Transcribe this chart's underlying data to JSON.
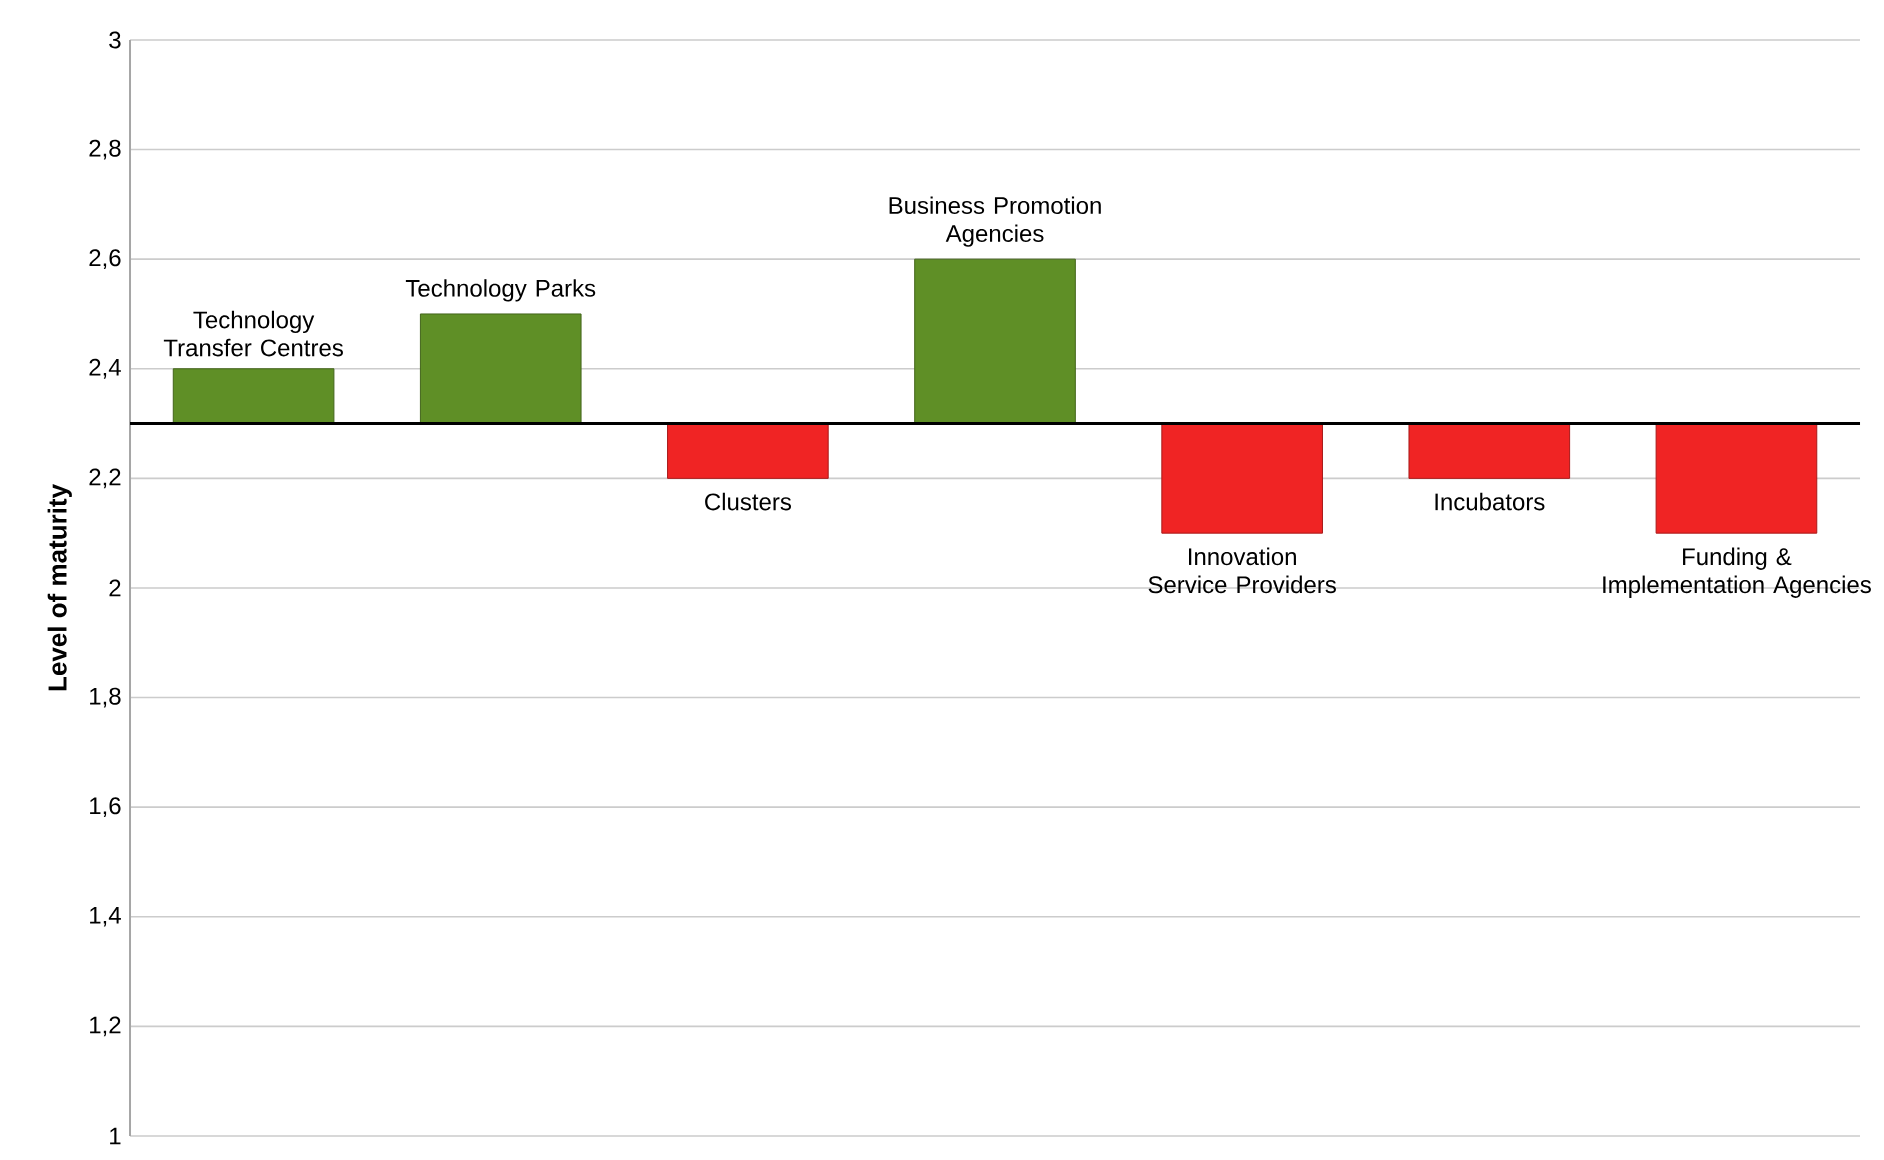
{
  "chart_data": {
    "type": "bar",
    "ylabel": "Level of maturity",
    "categories": [
      "Technology Transfer Centres",
      "Technology Parks",
      "Clusters",
      "Business Promotion Agencies",
      "Innovation Service Providers",
      "Incubators",
      "Funding & Implementation Agencies"
    ],
    "values": [
      0.1,
      0.2,
      -0.1,
      0.3,
      -0.2,
      -0.1,
      -0.2
    ],
    "base": [
      2.3,
      2.3,
      2.3,
      2.3,
      2.3,
      2.3,
      2.3
    ],
    "colors": [
      "#5f8f26",
      "#5f8f26",
      "#f02424",
      "#5f8f26",
      "#f02424",
      "#f02424",
      "#f02424"
    ],
    "ylim": [
      1,
      3
    ],
    "yticks": [
      {
        "value": 1,
        "label": "1"
      },
      {
        "value": 1.2,
        "label": "1,2"
      },
      {
        "value": 1.4,
        "label": "1,4"
      },
      {
        "value": 1.6,
        "label": "1,6"
      },
      {
        "value": 1.8,
        "label": "1,8"
      },
      {
        "value": 2,
        "label": "2"
      },
      {
        "value": 2.2,
        "label": "2,2"
      },
      {
        "value": 2.4,
        "label": "2,4"
      },
      {
        "value": 2.6,
        "label": "2,6"
      },
      {
        "value": 2.8,
        "label": "2,8"
      },
      {
        "value": 3,
        "label": "3"
      }
    ],
    "grid": "y",
    "ref_lines": [
      {
        "axis": "y",
        "value": 2.3,
        "color": "#000000"
      }
    ]
  }
}
